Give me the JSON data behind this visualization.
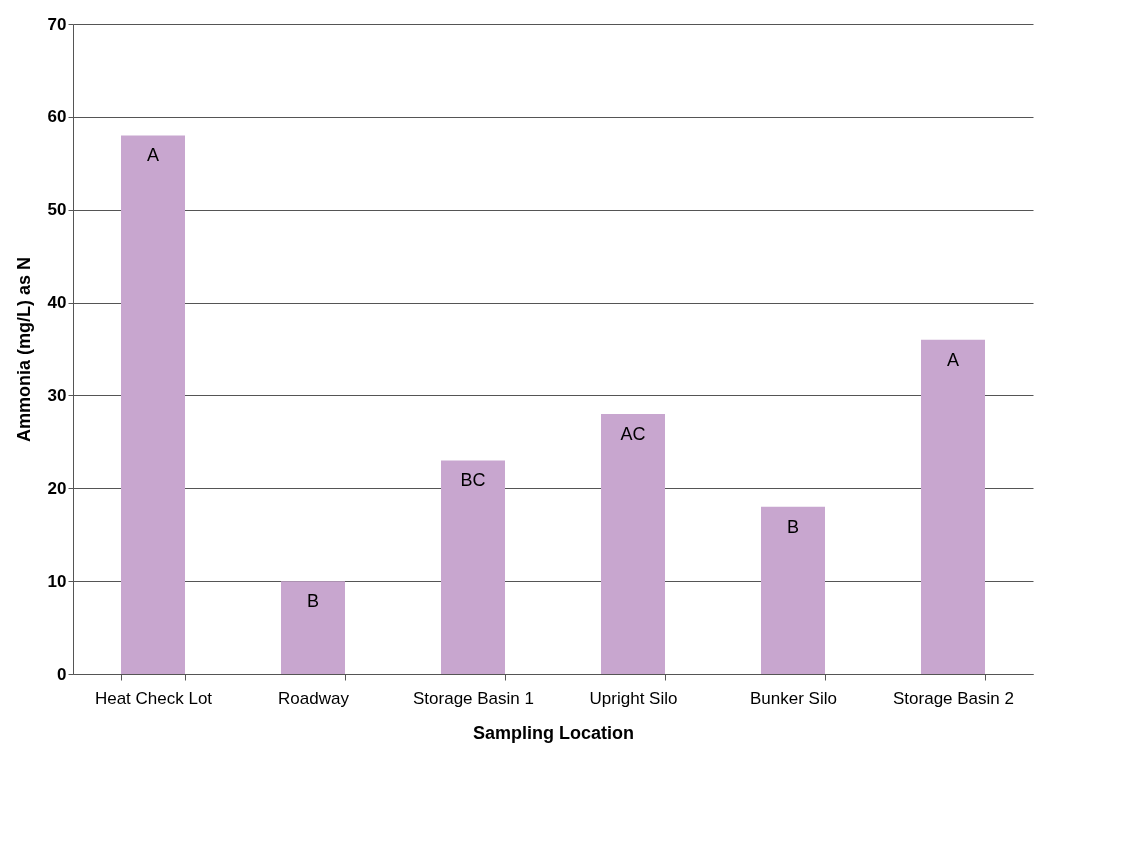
{
  "chart_data": {
    "type": "bar",
    "xlabel": "Sampling Location",
    "ylabel": "Ammonia (mg/L) as N",
    "categories": [
      "Heat Check Lot",
      "Roadway",
      "Storage Basin 1",
      "Upright Silo",
      "Bunker Silo",
      "Storage Basin 2"
    ],
    "values": [
      58,
      10,
      23,
      28,
      18,
      36
    ],
    "value_labels": [
      "A",
      "B",
      "BC",
      "AC",
      "B",
      "A"
    ],
    "color": "#c8a6cf",
    "ylim": [
      0,
      70
    ],
    "yticks": [
      0,
      10,
      20,
      30,
      40,
      50,
      60,
      70
    ],
    "grid": "y"
  }
}
